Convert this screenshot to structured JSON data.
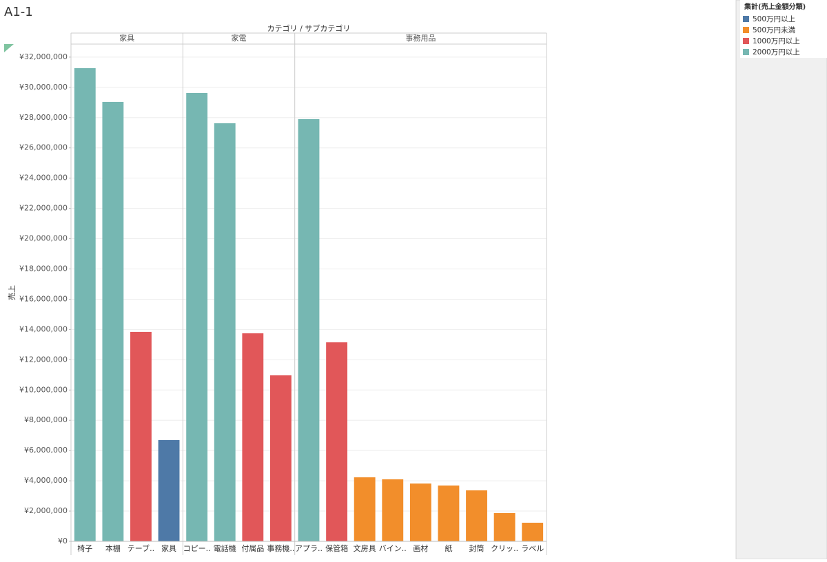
{
  "page_title": "A1-1",
  "chart_data": {
    "type": "bar",
    "title": "カテゴリ / サブカテゴリ",
    "y_label": "売上",
    "legend_title": "集計(売上金額分類)",
    "groups": [
      {
        "name": "家具",
        "categories": [
          "椅子",
          "本棚",
          "テーブ..",
          "家具"
        ]
      },
      {
        "name": "家電",
        "categories": [
          "コピー..",
          "電話機",
          "付属品",
          "事務機.."
        ]
      },
      {
        "name": "事務用品",
        "categories": [
          "アプラ..",
          "保管箱",
          "文房具",
          "バイン..",
          "画材",
          "紙",
          "封筒",
          "クリッ..",
          "ラベル"
        ]
      }
    ],
    "series": [
      {
        "name": "500万円以上",
        "color": "#4e79a7",
        "values": [
          null,
          null,
          null,
          6690000,
          null,
          null,
          null,
          null,
          null,
          null,
          null,
          null,
          null,
          null,
          null,
          null,
          null
        ]
      },
      {
        "name": "500万円未満",
        "color": "#f28e2b",
        "values": [
          null,
          null,
          null,
          null,
          null,
          null,
          null,
          null,
          null,
          null,
          4230000,
          4100000,
          3820000,
          3690000,
          3370000,
          1870000,
          1230000
        ]
      },
      {
        "name": "1000万円以上",
        "color": "#e15759",
        "values": [
          null,
          null,
          13840000,
          null,
          null,
          null,
          13750000,
          10970000,
          null,
          13150000,
          null,
          null,
          null,
          null,
          null,
          null,
          null
        ]
      },
      {
        "name": "2000万円以上",
        "color": "#76b7b2",
        "values": [
          31270000,
          29040000,
          null,
          null,
          29630000,
          27630000,
          null,
          null,
          27900000,
          null,
          null,
          null,
          null,
          null,
          null,
          null,
          null
        ]
      }
    ],
    "ylim": [
      0,
      32860000
    ],
    "yticks": [
      {
        "value": 0,
        "label": "¥0"
      },
      {
        "value": 2000000,
        "label": "¥2,000,000"
      },
      {
        "value": 4000000,
        "label": "¥4,000,000"
      },
      {
        "value": 6000000,
        "label": "¥6,000,000"
      },
      {
        "value": 8000000,
        "label": "¥8,000,000"
      },
      {
        "value": 10000000,
        "label": "¥10,000,000"
      },
      {
        "value": 12000000,
        "label": "¥12,000,000"
      },
      {
        "value": 14000000,
        "label": "¥14,000,000"
      },
      {
        "value": 16000000,
        "label": "¥16,000,000"
      },
      {
        "value": 18000000,
        "label": "¥18,000,000"
      },
      {
        "value": 20000000,
        "label": "¥20,000,000"
      },
      {
        "value": 22000000,
        "label": "¥22,000,000"
      },
      {
        "value": 24000000,
        "label": "¥24,000,000"
      },
      {
        "value": 26000000,
        "label": "¥26,000,000"
      },
      {
        "value": 28000000,
        "label": "¥28,000,000"
      },
      {
        "value": 30000000,
        "label": "¥30,000,000"
      },
      {
        "value": 32000000,
        "label": "¥32,000,000"
      }
    ],
    "grid": true
  }
}
